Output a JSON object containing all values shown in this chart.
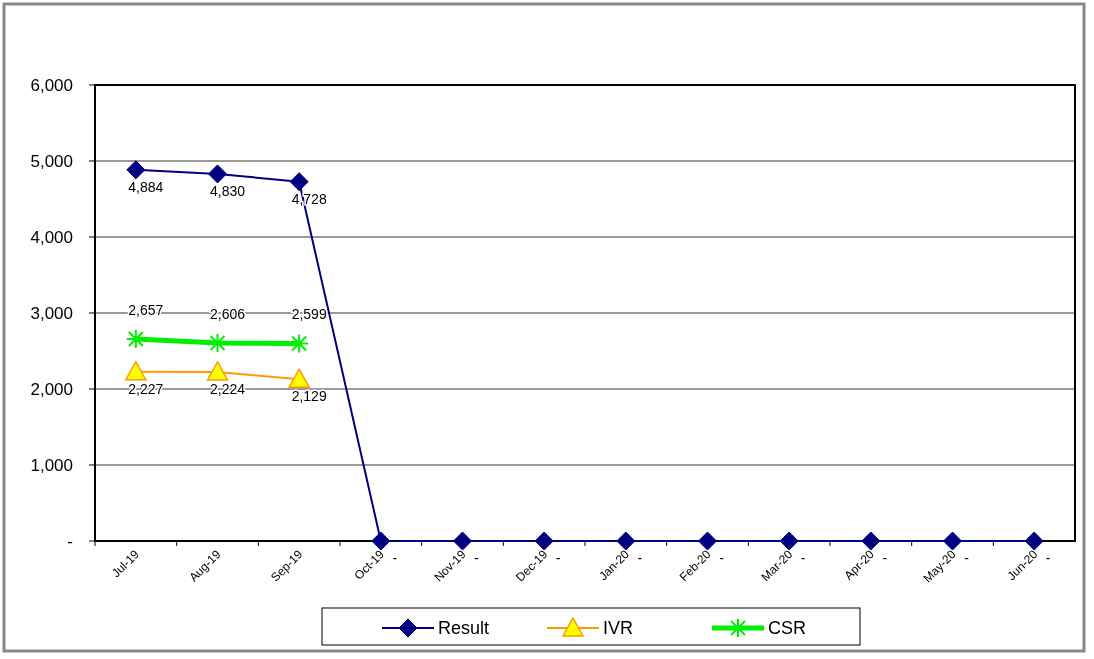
{
  "chart_data": {
    "type": "line",
    "categories": [
      "Jul-19",
      "Aug-19",
      "Sep-19",
      "Oct-19",
      "Nov-19",
      "Dec-19",
      "Jan-20",
      "Feb-20",
      "Mar-20",
      "Apr-20",
      "May-20",
      "Jun-20"
    ],
    "series": [
      {
        "name": "Result",
        "color": "#000080",
        "marker": "diamond",
        "values": [
          4884,
          4830,
          4728,
          0,
          0,
          0,
          0,
          0,
          0,
          0,
          0,
          0
        ],
        "value_labels": [
          "4,884",
          "4,830",
          "4,728",
          "-",
          "-",
          "-",
          "-",
          "-",
          "-",
          "-",
          "-",
          "-"
        ]
      },
      {
        "name": "IVR",
        "color": "#ff9900",
        "marker": "triangle",
        "values": [
          2227,
          2224,
          2129,
          null,
          null,
          null,
          null,
          null,
          null,
          null,
          null,
          null
        ],
        "value_labels": [
          "2,227",
          "2,224",
          "2,129",
          null,
          null,
          null,
          null,
          null,
          null,
          null,
          null,
          null
        ]
      },
      {
        "name": "CSR",
        "color": "#00ee00",
        "marker": "cross",
        "values": [
          2657,
          2606,
          2599,
          null,
          null,
          null,
          null,
          null,
          null,
          null,
          null,
          null
        ],
        "value_labels": [
          "2,657",
          "2,606",
          "2,599",
          null,
          null,
          null,
          null,
          null,
          null,
          null,
          null,
          null
        ]
      }
    ],
    "ylim": [
      0,
      6000
    ],
    "yticks": [
      {
        "value": 0,
        "label": "-"
      },
      {
        "value": 1000,
        "label": "1,000"
      },
      {
        "value": 2000,
        "label": "2,000"
      },
      {
        "value": 3000,
        "label": "3,000"
      },
      {
        "value": 4000,
        "label": "4,000"
      },
      {
        "value": 5000,
        "label": "5,000"
      },
      {
        "value": 6000,
        "label": "6,000"
      }
    ],
    "grid": "y",
    "legend": "bottom",
    "line_style": "solid"
  }
}
